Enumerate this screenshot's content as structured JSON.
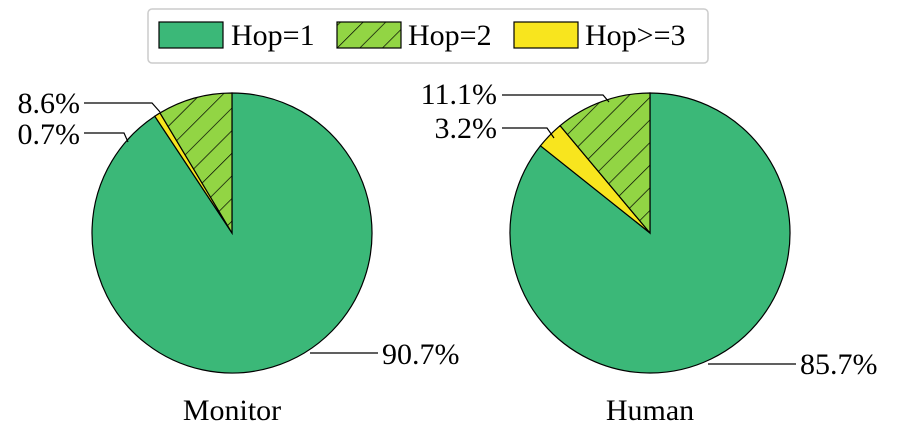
{
  "colors": {
    "hop1": "#3bb878",
    "hop2": "#92d544",
    "hop3": "#f8e51e",
    "stroke": "#000000",
    "legend_border": "#cccccc"
  },
  "legend": {
    "items": [
      {
        "label": "Hop=1",
        "pattern": "solid"
      },
      {
        "label": "Hop=2",
        "pattern": "hatch"
      },
      {
        "label": "Hop>=3",
        "pattern": "solid"
      }
    ]
  },
  "chart_data": [
    {
      "type": "pie",
      "title": "Monitor",
      "start_angle": "top, clockwise",
      "slices": [
        {
          "label": "Hop=1",
          "value": 90.7,
          "value_label": "90.7%"
        },
        {
          "label": "Hop>=3",
          "value": 0.7,
          "value_label": "0.7%"
        },
        {
          "label": "Hop=2",
          "value": 8.6,
          "value_label": "8.6%"
        }
      ]
    },
    {
      "type": "pie",
      "title": "Human",
      "start_angle": "top, clockwise",
      "slices": [
        {
          "label": "Hop=1",
          "value": 85.7,
          "value_label": "85.7%"
        },
        {
          "label": "Hop>=3",
          "value": 3.2,
          "value_label": "3.2%"
        },
        {
          "label": "Hop=2",
          "value": 11.1,
          "value_label": "11.1%"
        }
      ]
    }
  ]
}
